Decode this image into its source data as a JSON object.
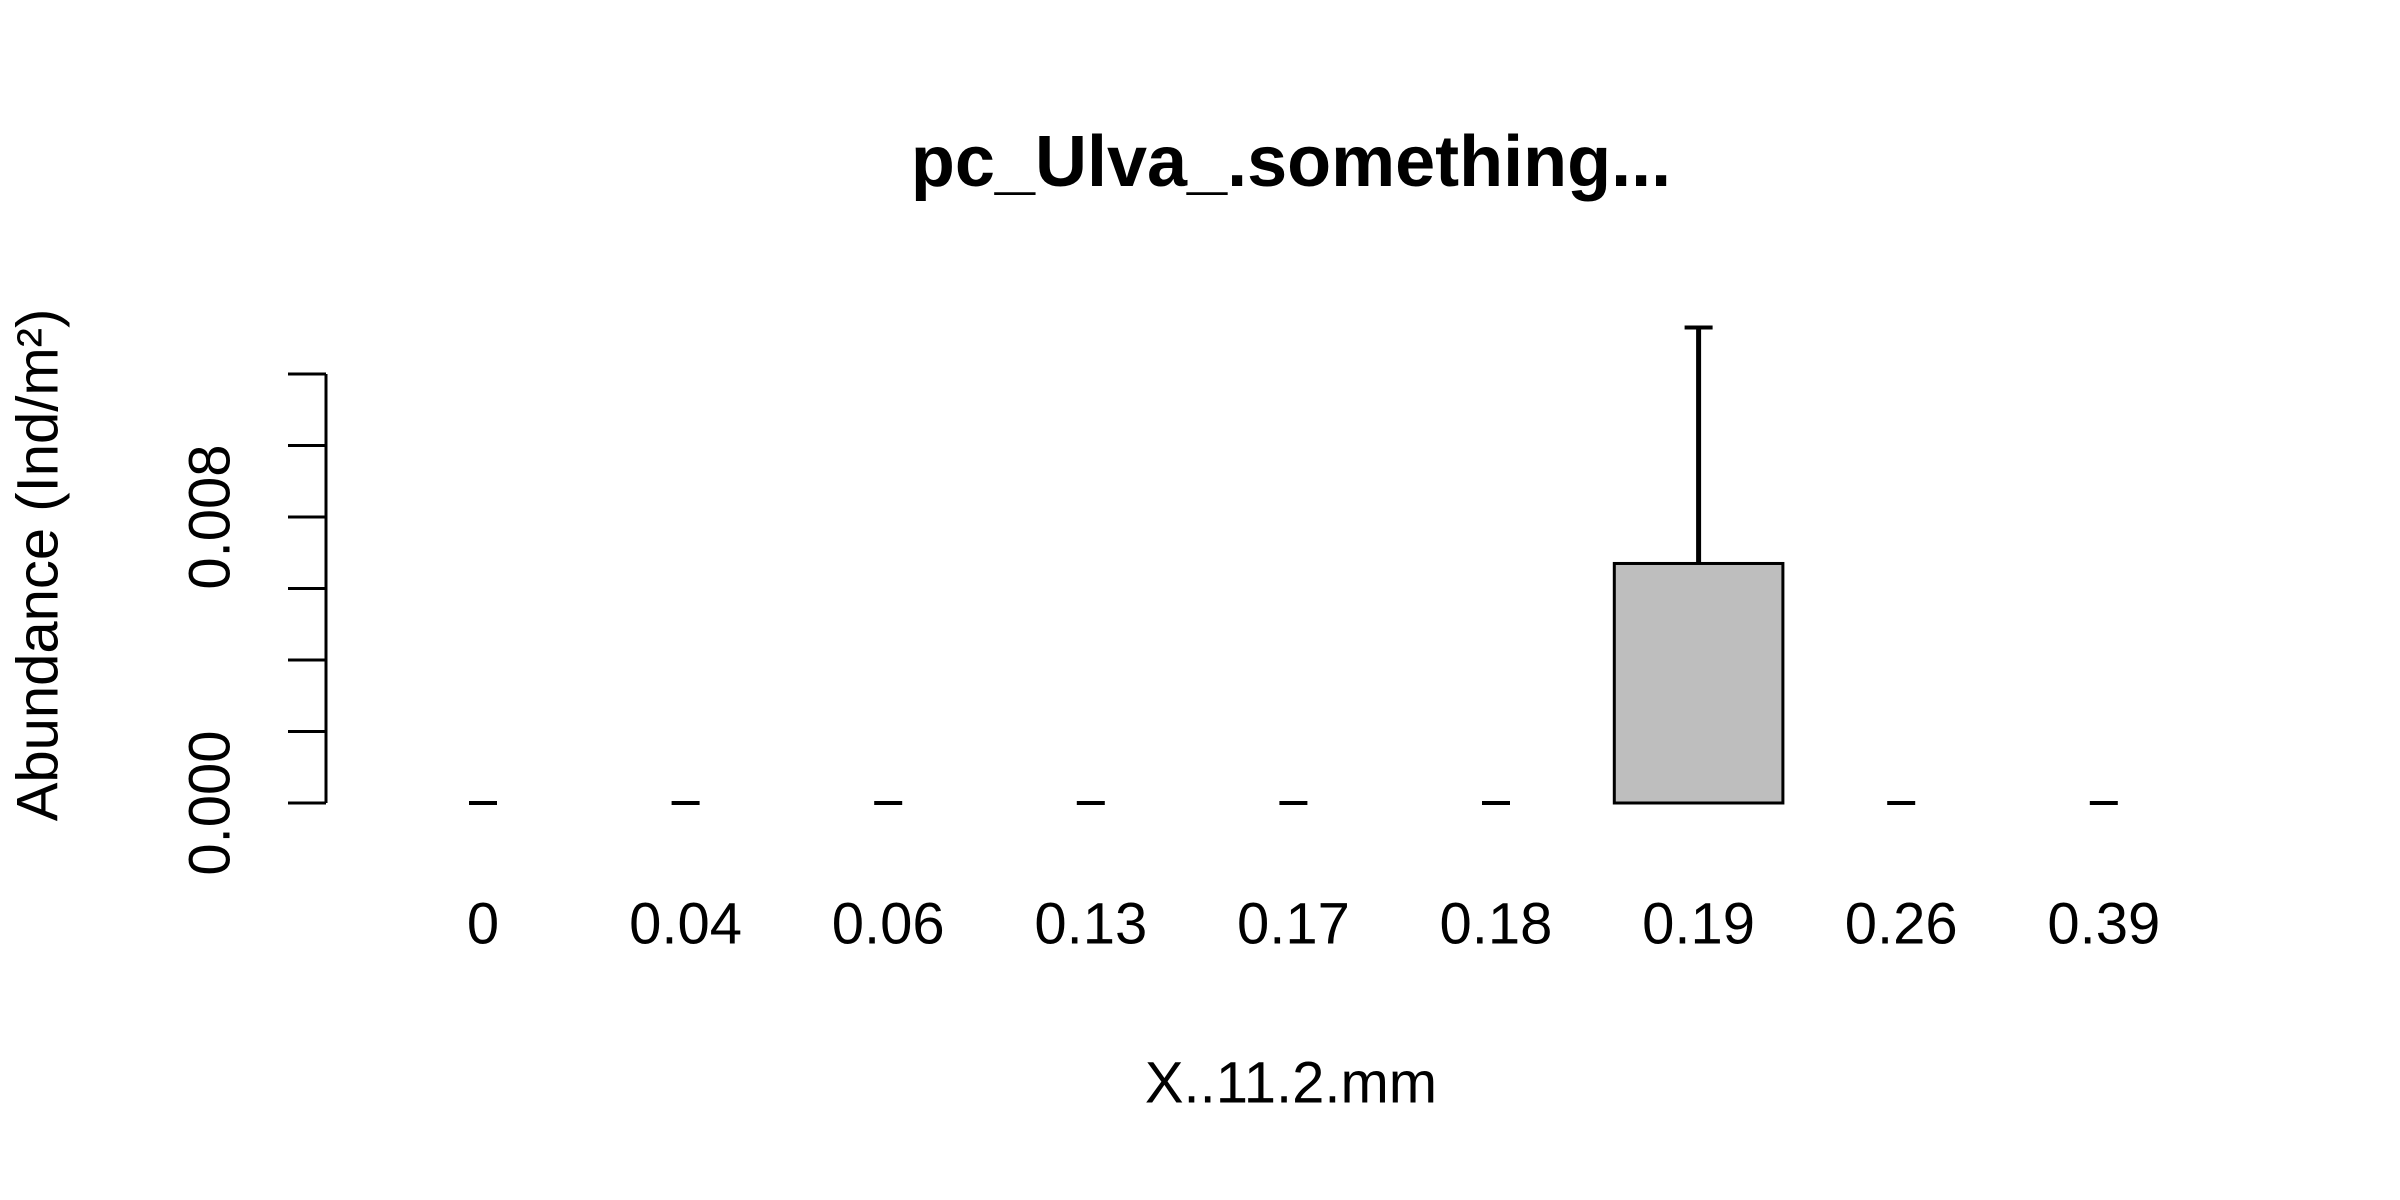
{
  "chart_data": {
    "type": "bar",
    "title": "pc_Ulva_.something...",
    "xlabel": "X..11.2.mm",
    "ylabel": "Abundance (Ind/m²)",
    "categories": [
      "0",
      "0.04",
      "0.06",
      "0.13",
      "0.17",
      "0.18",
      "0.19",
      "0.26",
      "0.39"
    ],
    "values": [
      0,
      0,
      0,
      0,
      0,
      0,
      0.0067,
      0,
      0
    ],
    "errors": [
      0,
      0,
      0,
      0,
      0,
      0,
      0.0066,
      0,
      0
    ],
    "color": "#bebebe",
    "ylim": [
      0,
      0.012
    ],
    "yticks": [
      {
        "value": 0,
        "label": "0.000"
      },
      {
        "value": 0.008,
        "label": "0.008"
      }
    ],
    "yticks_minor": [
      0.002,
      0.004,
      0.006,
      0.01,
      0.012
    ]
  }
}
